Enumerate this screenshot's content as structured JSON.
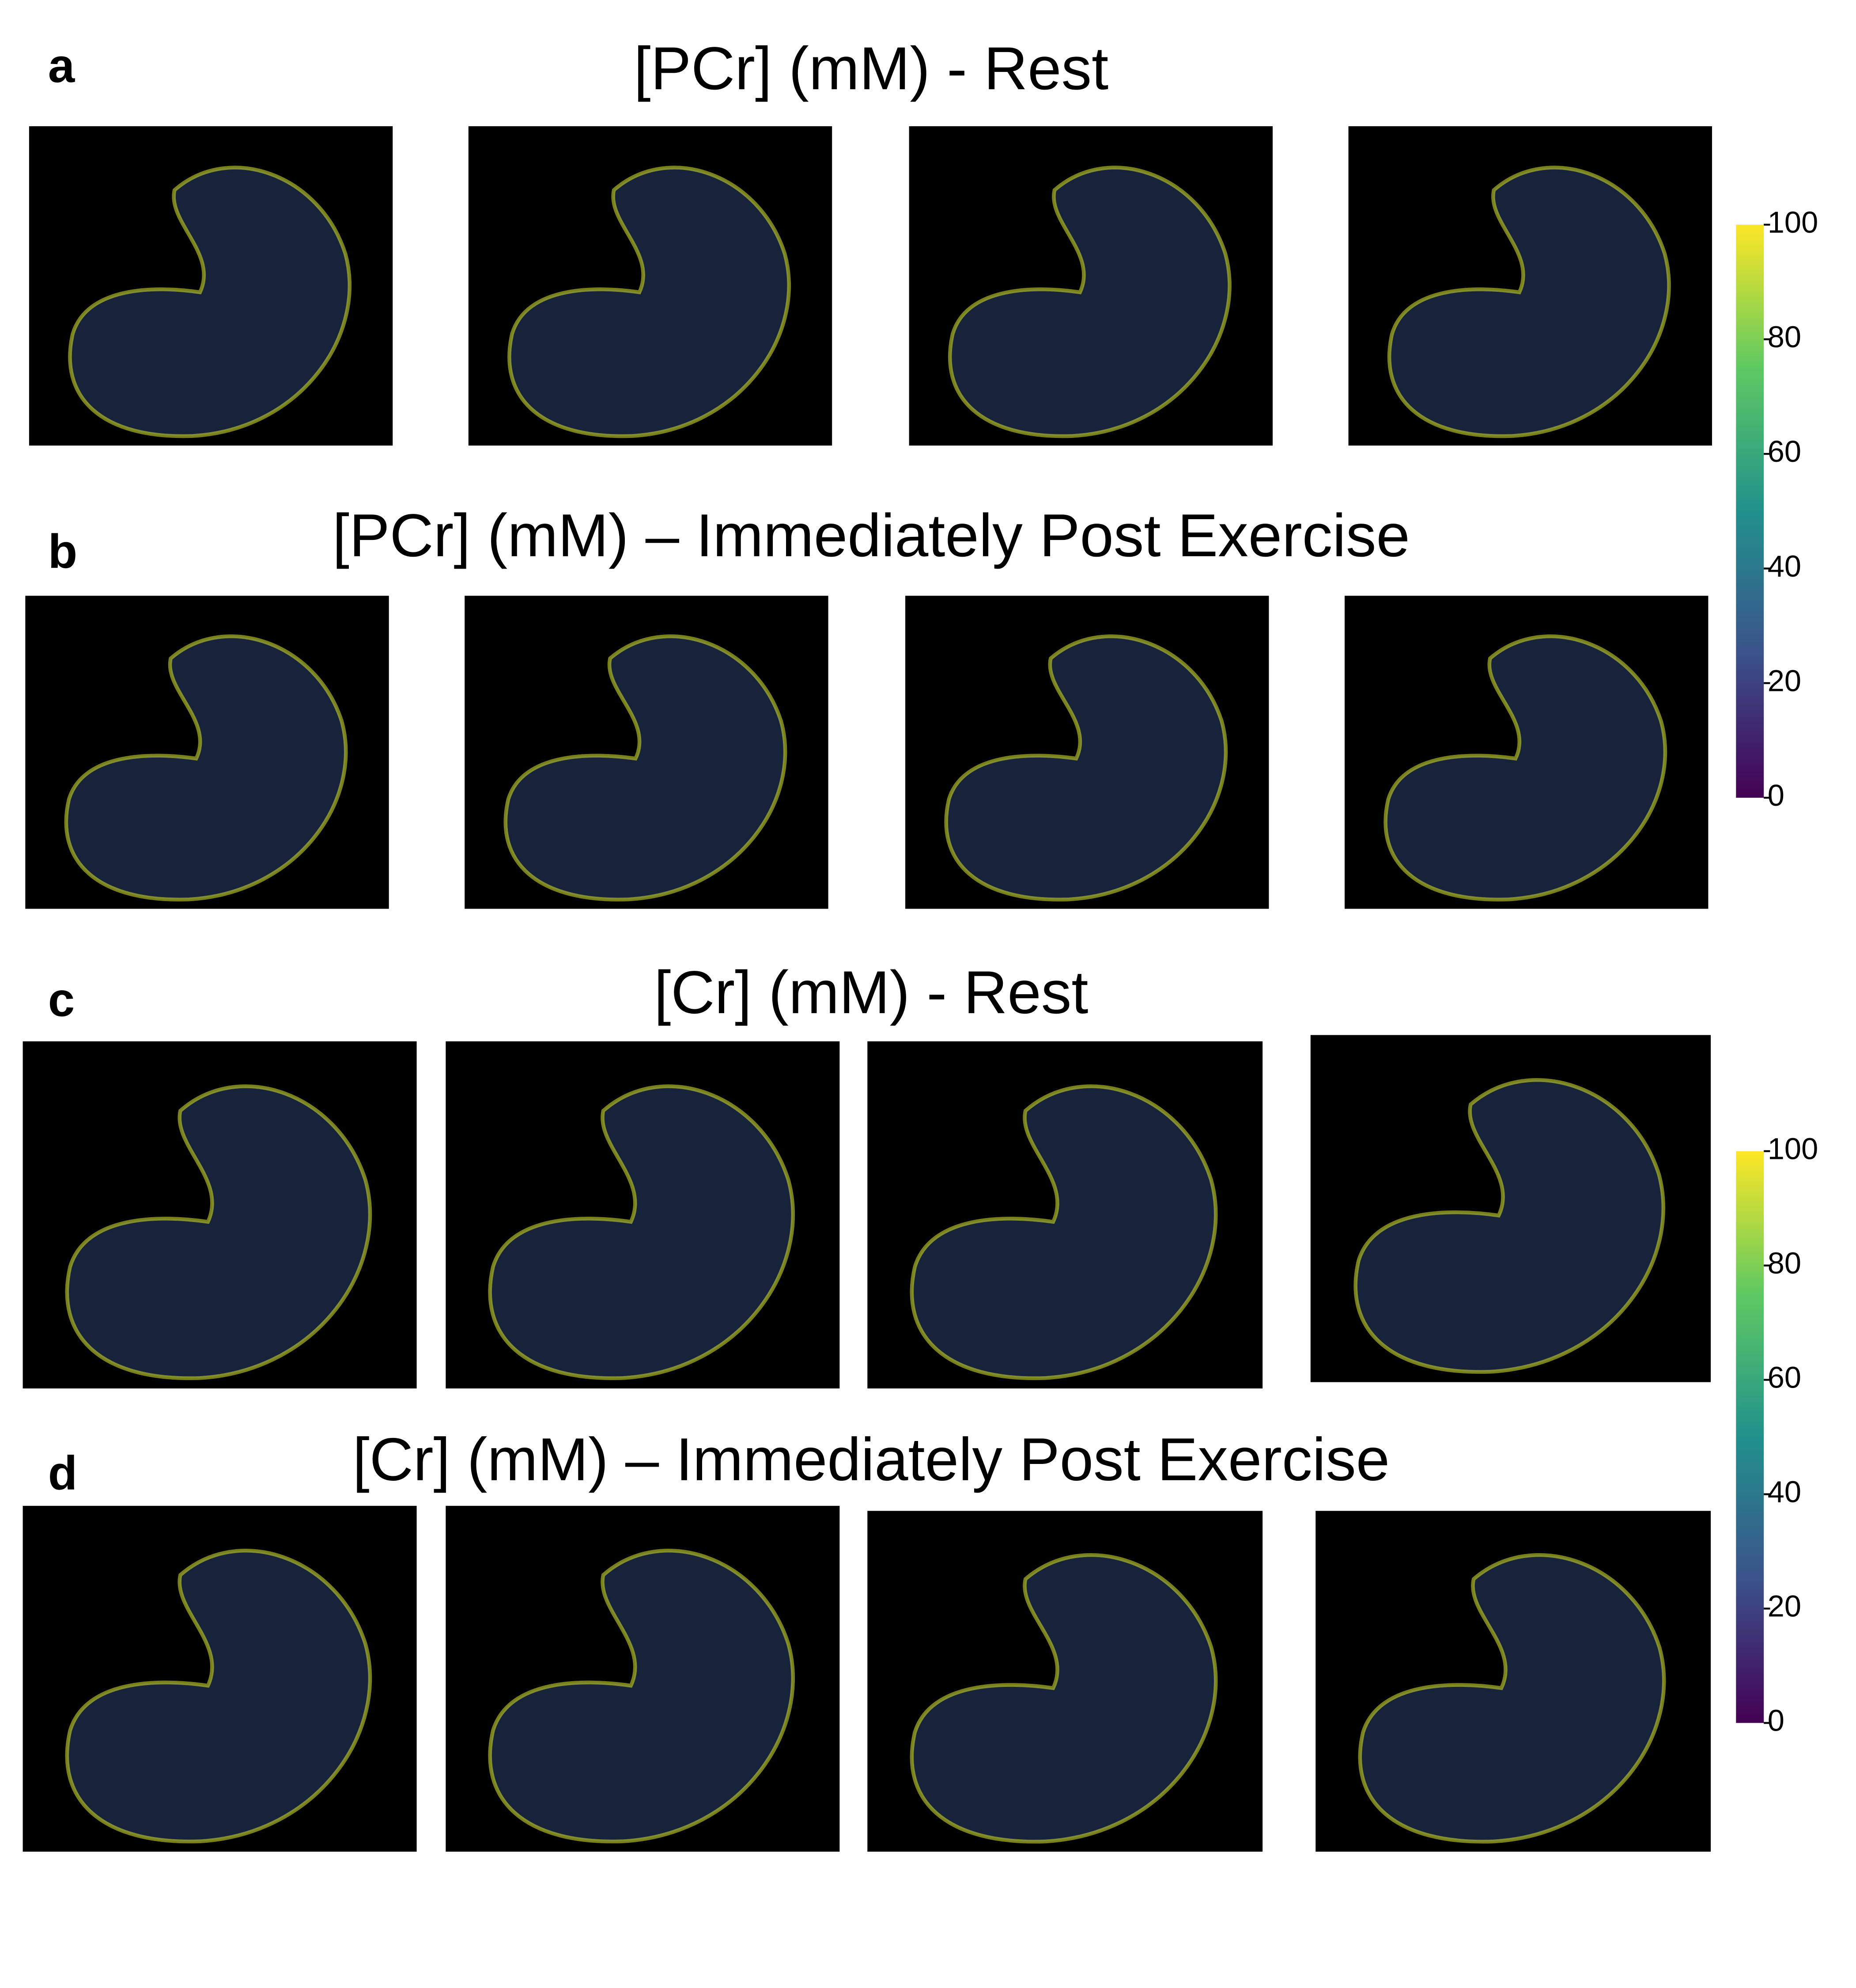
{
  "panels": [
    {
      "label": "a",
      "title": "[PCr] (mM) - Rest"
    },
    {
      "label": "b",
      "title": "[PCr] (mM) – Immediately Post Exercise"
    },
    {
      "label": "c",
      "title": "[Cr] (mM) - Rest"
    },
    {
      "label": "d",
      "title": "[Cr] (mM) – Immediately Post Exercise"
    }
  ],
  "colorbars": [
    {
      "lim": [
        0,
        100
      ],
      "ticks": [
        0,
        20,
        40,
        60,
        80,
        100
      ],
      "colormap": [
        "#440154",
        "#3b528b",
        "#21918c",
        "#5ec962",
        "#fde725"
      ]
    },
    {
      "lim": [
        0,
        100
      ],
      "ticks": [
        0,
        20,
        40,
        60,
        80,
        100
      ],
      "colormap": [
        "#440154",
        "#3b528b",
        "#21918c",
        "#5ec962",
        "#fde725"
      ]
    }
  ]
}
